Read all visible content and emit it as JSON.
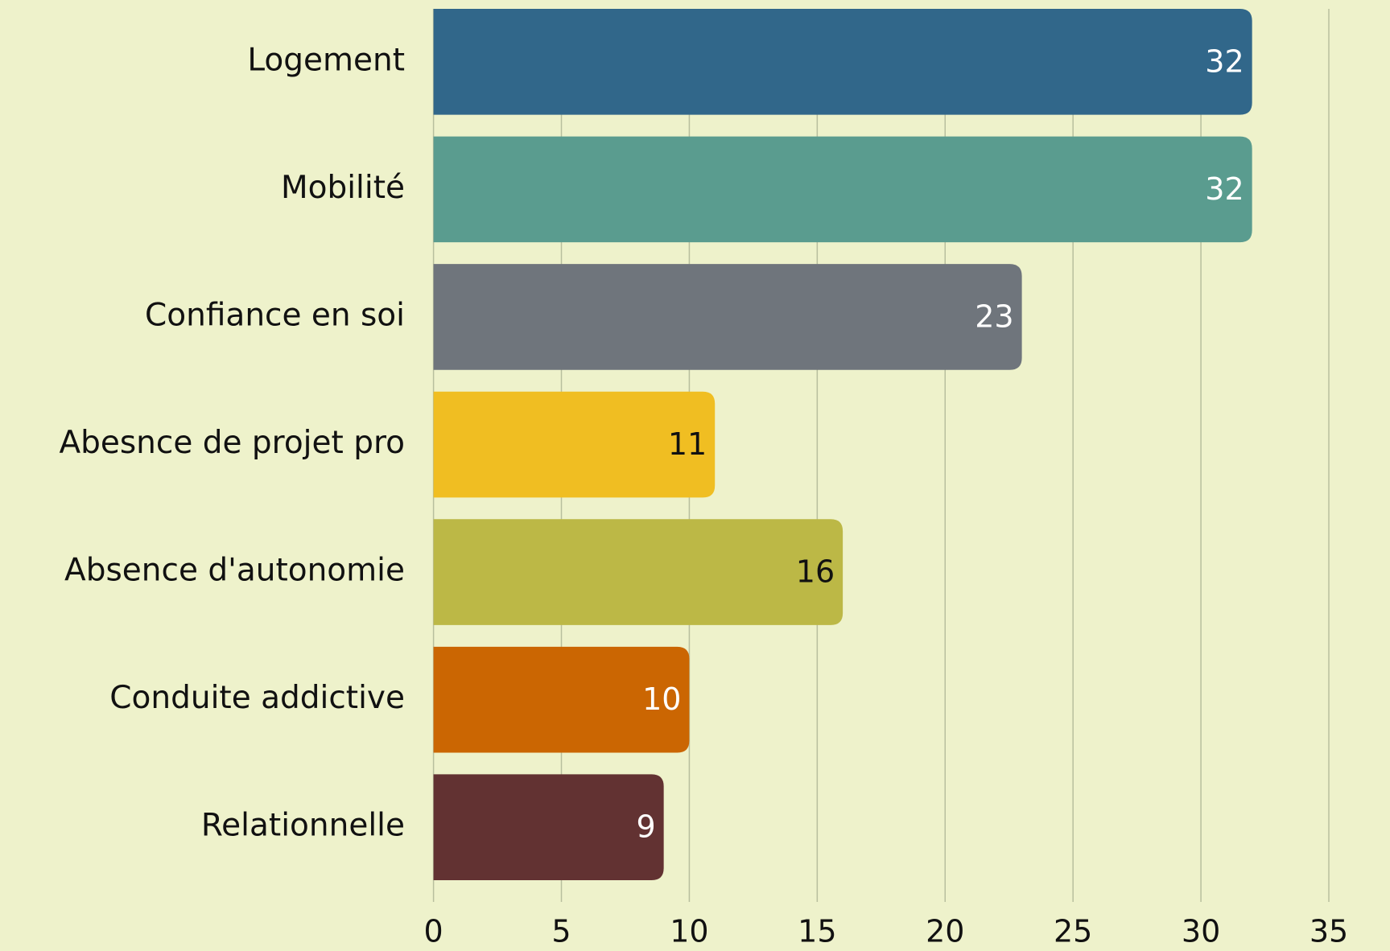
{
  "chart_data": {
    "type": "barh",
    "categories": [
      "Logement",
      "Mobilité",
      "Confiance en soi",
      "Abesnce de projet pro",
      "Absence d'autonomie",
      "Conduite addictive",
      "Relationnelle"
    ],
    "values": [
      32,
      32,
      23,
      11,
      16,
      10,
      9
    ],
    "colors": [
      "#31678a",
      "#5a9c8f",
      "#6f757c",
      "#f0be22",
      "#bcb846",
      "#cb6602",
      "#623232"
    ],
    "label_colors": [
      "#ffffff",
      "#ffffff",
      "#ffffff",
      "#111111",
      "#111111",
      "#ffffff",
      "#ffffff"
    ],
    "xlim": [
      0,
      35
    ],
    "xticks": [
      0,
      5,
      10,
      15,
      20,
      25,
      30,
      35
    ],
    "grid": true
  }
}
